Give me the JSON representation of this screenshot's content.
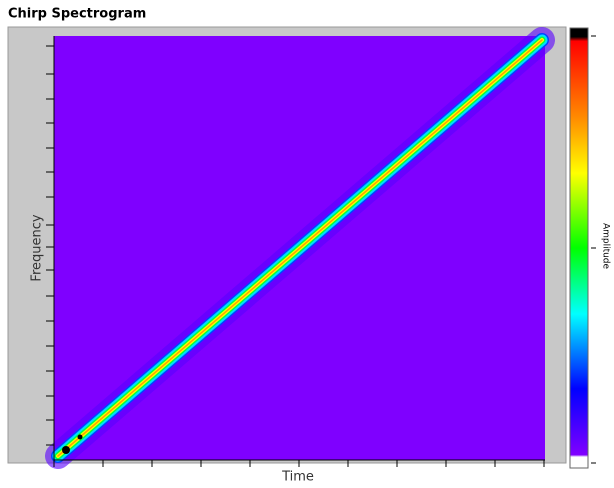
{
  "window": {
    "title": "Chirp Spectrogram",
    "x_label": "Time",
    "y_label": "Frequency",
    "colorbar_label": "Amplitude"
  }
}
